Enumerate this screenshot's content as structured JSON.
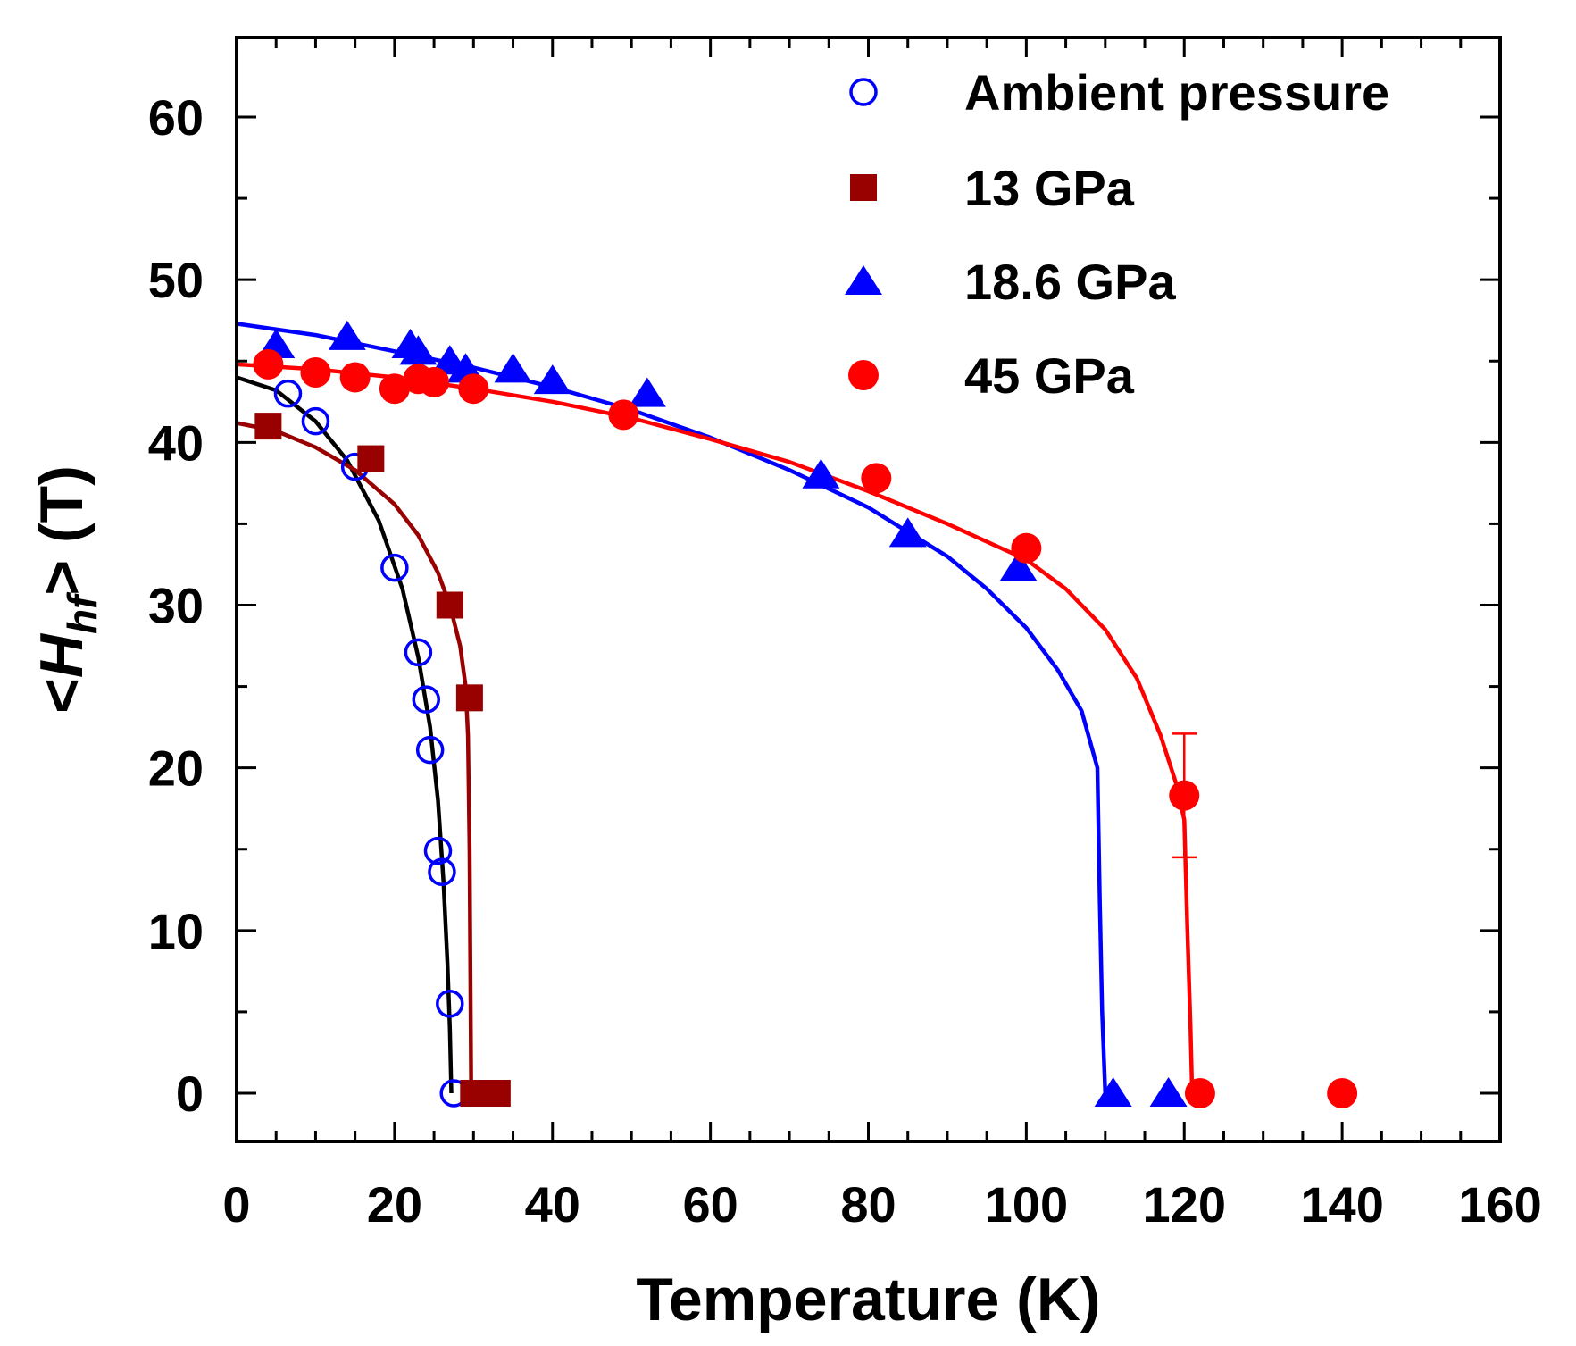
{
  "chart_data": {
    "type": "scatter",
    "title": "",
    "xlabel": "Temperature (K)",
    "ylabel": {
      "prefix": "<",
      "main": "H",
      "subscript": "hf",
      "suffix": "> (T)"
    },
    "xlim": [
      0,
      160
    ],
    "ylim": [
      -3,
      65
    ],
    "xticks": [
      0,
      20,
      40,
      60,
      80,
      100,
      120,
      140,
      160
    ],
    "yticks": [
      0,
      10,
      20,
      30,
      40,
      50,
      60
    ],
    "legend_position": "top-right",
    "series": [
      {
        "name": "Ambient pressure",
        "marker": "circle-open",
        "color": "#0000ff",
        "fit_color": "#000000",
        "points": [
          [
            6.5,
            43
          ],
          [
            10,
            41.3
          ],
          [
            15,
            38.5
          ],
          [
            20,
            32.3
          ],
          [
            23,
            27.1
          ],
          [
            24,
            24.2
          ],
          [
            24.5,
            21.1
          ],
          [
            25.5,
            14.9
          ],
          [
            26,
            13.6
          ],
          [
            27,
            5.5
          ],
          [
            27.5,
            0
          ]
        ],
        "fit": [
          [
            0,
            44
          ],
          [
            5,
            43.2
          ],
          [
            10,
            41.3
          ],
          [
            14,
            38.9
          ],
          [
            18,
            35.2
          ],
          [
            21,
            31
          ],
          [
            23,
            26.8
          ],
          [
            24.5,
            22.5
          ],
          [
            25.5,
            18
          ],
          [
            26.2,
            13
          ],
          [
            26.7,
            8
          ],
          [
            27,
            4
          ],
          [
            27.2,
            0
          ]
        ]
      },
      {
        "name": "13 GPa",
        "marker": "square",
        "color": "#990000",
        "fit_color": "#990000",
        "points": [
          [
            4,
            41
          ],
          [
            17,
            39
          ],
          [
            27,
            30
          ],
          [
            29.5,
            24.3
          ],
          [
            30,
            0
          ],
          [
            33,
            0
          ]
        ],
        "fit": [
          [
            0,
            41.2
          ],
          [
            5,
            40.7
          ],
          [
            10,
            39.7
          ],
          [
            15,
            38.3
          ],
          [
            20,
            36.2
          ],
          [
            23,
            34.3
          ],
          [
            25.5,
            32
          ],
          [
            27,
            30
          ],
          [
            28.3,
            27.5
          ],
          [
            29,
            25
          ],
          [
            29.3,
            22
          ],
          [
            29.5,
            15
          ],
          [
            29.7,
            0
          ]
        ]
      },
      {
        "name": "18.6 GPa",
        "marker": "triangle",
        "color": "#0000ff",
        "fit_color": "#0000ff",
        "points": [
          [
            5,
            46
          ],
          [
            14,
            46.5
          ],
          [
            22,
            46
          ],
          [
            23,
            45.6
          ],
          [
            27,
            45
          ],
          [
            29,
            44.5
          ],
          [
            35,
            44.5
          ],
          [
            40,
            43.8
          ],
          [
            52,
            43
          ],
          [
            74,
            38
          ],
          [
            85,
            34.4
          ],
          [
            99,
            32.3
          ],
          [
            111,
            0
          ],
          [
            118,
            0
          ]
        ],
        "fit": [
          [
            0,
            47.3
          ],
          [
            10,
            46.6
          ],
          [
            20,
            45.6
          ],
          [
            30,
            44.6
          ],
          [
            40,
            43.4
          ],
          [
            50,
            42
          ],
          [
            60,
            40.3
          ],
          [
            70,
            38.3
          ],
          [
            80,
            36
          ],
          [
            90,
            33
          ],
          [
            95,
            31
          ],
          [
            100,
            28.6
          ],
          [
            104,
            26
          ],
          [
            107,
            23.5
          ],
          [
            109,
            20
          ],
          [
            109.3,
            12
          ],
          [
            109.6,
            5
          ],
          [
            110,
            0
          ]
        ]
      },
      {
        "name": "45 GPa",
        "marker": "circle-filled",
        "color": "#ff0000",
        "fit_color": "#ff0000",
        "points": [
          [
            4,
            44.8
          ],
          [
            10,
            44.3
          ],
          [
            15,
            44
          ],
          [
            20,
            43.3
          ],
          [
            23,
            43.9
          ],
          [
            25,
            43.7
          ],
          [
            30,
            43.3
          ],
          [
            49,
            41.7
          ],
          [
            81,
            37.8
          ],
          [
            100,
            33.5
          ],
          [
            120,
            18.3
          ],
          [
            122,
            0
          ],
          [
            140,
            0
          ]
        ],
        "fit": [
          [
            0,
            44.8
          ],
          [
            10,
            44.5
          ],
          [
            20,
            44
          ],
          [
            30,
            43.3
          ],
          [
            40,
            42.5
          ],
          [
            50,
            41.5
          ],
          [
            60,
            40.2
          ],
          [
            70,
            38.8
          ],
          [
            80,
            37
          ],
          [
            90,
            35
          ],
          [
            100,
            32.8
          ],
          [
            105,
            31
          ],
          [
            110,
            28.5
          ],
          [
            114,
            25.5
          ],
          [
            117,
            22
          ],
          [
            119,
            19
          ],
          [
            120,
            16.8
          ],
          [
            120.4,
            10
          ],
          [
            120.8,
            4
          ],
          [
            121,
            0
          ]
        ]
      }
    ],
    "error_bars": [
      {
        "series": "45 GPa",
        "x": 120,
        "y": 18.3,
        "low": 14.5,
        "high": 22.1
      }
    ]
  }
}
